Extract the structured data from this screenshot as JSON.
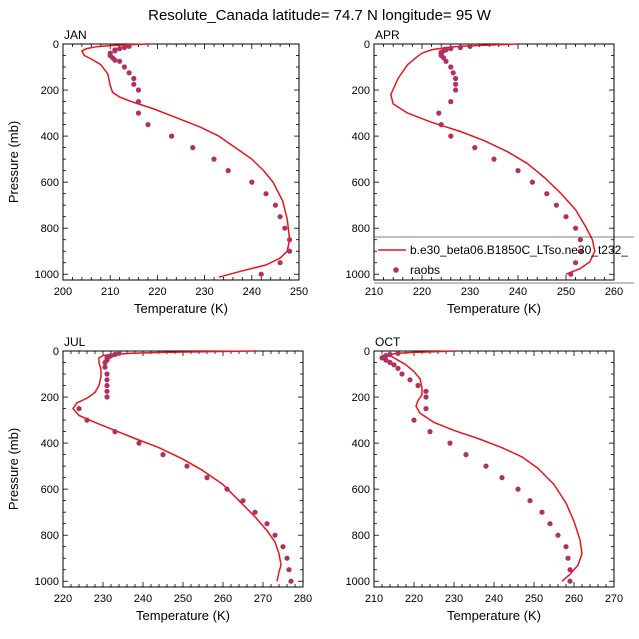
{
  "title": "Resolute_Canada  latitude= 74.7 N longitude= 95 W",
  "colors": {
    "model": "#e8141c",
    "raobs": "#b03060",
    "axis": "#000000"
  },
  "legend": {
    "model_label": "b.e30_beta06.B1850C_LTso.ne30_t232_",
    "obs_label": "raobs",
    "placement": "bottom-right of APR panel"
  },
  "chart_data": [
    {
      "type": "line",
      "panel": "JAN",
      "xlabel": "Temperature (K)",
      "ylabel": "Pressure (mb)",
      "xlim": [
        200,
        250
      ],
      "ylim": [
        1025,
        0
      ],
      "y_inverted": true,
      "xticks": [
        "200",
        "210",
        "220",
        "230",
        "240",
        "250"
      ],
      "yticks": [
        "0",
        "200",
        "400",
        "600",
        "800",
        "1000"
      ],
      "series": [
        {
          "kind": "line",
          "points": [
            [
              218,
              0
            ],
            [
              214,
              3
            ],
            [
              210,
              7
            ],
            [
              207,
              12
            ],
            [
              205,
              20
            ],
            [
              204,
              30
            ],
            [
              204.5,
              50
            ],
            [
              206,
              65
            ],
            [
              208,
              90
            ],
            [
              209.5,
              130
            ],
            [
              210,
              180
            ],
            [
              210.5,
              210
            ],
            [
              212,
              230
            ],
            [
              214.5,
              250
            ],
            [
              219,
              280
            ],
            [
              224,
              320
            ],
            [
              229,
              360
            ],
            [
              233,
              400
            ],
            [
              236.5,
              450
            ],
            [
              240,
              500
            ],
            [
              242.5,
              550
            ],
            [
              244.5,
              600
            ],
            [
              246.5,
              680
            ],
            [
              247.5,
              760
            ],
            [
              248,
              850
            ],
            [
              247.5,
              900
            ],
            [
              246,
              930
            ],
            [
              243,
              960
            ],
            [
              238,
              985
            ],
            [
              233,
              1013
            ]
          ]
        },
        {
          "kind": "points",
          "points": [
            [
              214,
              10
            ],
            [
              213,
              15
            ],
            [
              212,
              20
            ],
            [
              211,
              25
            ],
            [
              211,
              30
            ],
            [
              210,
              40
            ],
            [
              210,
              50
            ],
            [
              210.5,
              60
            ],
            [
              211,
              70
            ],
            [
              212,
              75
            ],
            [
              213,
              100
            ],
            [
              214,
              125
            ],
            [
              215,
              150
            ],
            [
              215,
              175
            ],
            [
              216,
              200
            ],
            [
              216,
              250
            ],
            [
              216,
              300
            ],
            [
              218,
              350
            ],
            [
              223,
              400
            ],
            [
              227.5,
              450
            ],
            [
              232,
              500
            ],
            [
              235,
              550
            ],
            [
              240,
              600
            ],
            [
              243,
              650
            ],
            [
              245,
              700
            ],
            [
              246,
              750
            ],
            [
              247,
              800
            ],
            [
              248,
              850
            ],
            [
              248,
              900
            ],
            [
              246,
              950
            ],
            [
              242,
              1000
            ]
          ]
        }
      ]
    },
    {
      "type": "line",
      "panel": "APR",
      "xlabel": "Temperature (K)",
      "ylabel": "",
      "xlim": [
        210,
        260
      ],
      "ylim": [
        1025,
        0
      ],
      "y_inverted": true,
      "xticks": [
        "210",
        "220",
        "230",
        "240",
        "250",
        "260"
      ],
      "yticks": [
        "0",
        "200",
        "400",
        "600",
        "800",
        "1000"
      ],
      "series": [
        {
          "kind": "line",
          "points": [
            [
              240,
              0
            ],
            [
              233,
              5
            ],
            [
              228,
              10
            ],
            [
              225,
              15
            ],
            [
              222,
              25
            ],
            [
              220,
              40
            ],
            [
              219,
              55
            ],
            [
              217,
              90
            ],
            [
              215,
              150
            ],
            [
              213.5,
              220
            ],
            [
              214,
              260
            ],
            [
              217,
              300
            ],
            [
              222,
              340
            ],
            [
              228,
              380
            ],
            [
              233,
              420
            ],
            [
              238,
              470
            ],
            [
              242,
              520
            ],
            [
              245.5,
              580
            ],
            [
              249,
              650
            ],
            [
              252,
              720
            ],
            [
              254,
              790
            ],
            [
              255.5,
              850
            ],
            [
              256,
              900
            ],
            [
              255,
              945
            ],
            [
              253,
              975
            ],
            [
              250,
              1000
            ]
          ]
        },
        {
          "kind": "points",
          "points": [
            [
              230,
              10
            ],
            [
              228,
              15
            ],
            [
              226,
              20
            ],
            [
              225,
              25
            ],
            [
              224.5,
              30
            ],
            [
              224,
              35
            ],
            [
              224,
              40
            ],
            [
              224,
              45
            ],
            [
              224,
              50
            ],
            [
              224.5,
              60
            ],
            [
              225,
              75
            ],
            [
              226,
              100
            ],
            [
              226.5,
              125
            ],
            [
              227,
              150
            ],
            [
              227,
              175
            ],
            [
              227,
              200
            ],
            [
              226,
              250
            ],
            [
              223.5,
              300
            ],
            [
              224,
              350
            ],
            [
              226,
              400
            ],
            [
              231,
              450
            ],
            [
              235,
              500
            ],
            [
              240,
              550
            ],
            [
              243,
              600
            ],
            [
              246,
              650
            ],
            [
              248,
              700
            ],
            [
              250,
              750
            ],
            [
              252,
              800
            ],
            [
              253,
              850
            ],
            [
              253,
              900
            ],
            [
              252,
              950
            ],
            [
              251,
              1000
            ]
          ]
        }
      ]
    },
    {
      "type": "line",
      "panel": "JUL",
      "xlabel": "Temperature (K)",
      "ylabel": "Pressure (mb)",
      "xlim": [
        220,
        280
      ],
      "ylim": [
        1025,
        0
      ],
      "y_inverted": true,
      "xticks": [
        "220",
        "230",
        "240",
        "250",
        "260",
        "270",
        "280"
      ],
      "yticks": [
        "0",
        "200",
        "400",
        "600",
        "800",
        "1000"
      ],
      "series": [
        {
          "kind": "line",
          "points": [
            [
              268,
              0
            ],
            [
              255,
              3
            ],
            [
              245,
              6
            ],
            [
              237,
              10
            ],
            [
              232,
              15
            ],
            [
              230,
              20
            ],
            [
              229,
              30
            ],
            [
              229,
              50
            ],
            [
              229.5,
              80
            ],
            [
              229.5,
              110
            ],
            [
              229,
              150
            ],
            [
              228,
              180
            ],
            [
              226,
              205
            ],
            [
              223.5,
              225
            ],
            [
              222.5,
              250
            ],
            [
              224,
              280
            ],
            [
              228,
              310
            ],
            [
              233,
              345
            ],
            [
              238,
              380
            ],
            [
              244,
              420
            ],
            [
              250,
              470
            ],
            [
              255,
              520
            ],
            [
              260,
              580
            ],
            [
              264,
              650
            ],
            [
              268,
              720
            ],
            [
              271,
              780
            ],
            [
              273,
              830
            ],
            [
              274,
              880
            ],
            [
              274.5,
              930
            ],
            [
              274,
              960
            ],
            [
              273.5,
              1000
            ]
          ]
        },
        {
          "kind": "points",
          "points": [
            [
              234,
              10
            ],
            [
              233,
              15
            ],
            [
              232,
              20
            ],
            [
              231.5,
              25
            ],
            [
              231,
              30
            ],
            [
              231,
              40
            ],
            [
              230.5,
              50
            ],
            [
              230.5,
              70
            ],
            [
              231,
              100
            ],
            [
              231,
              125
            ],
            [
              231,
              150
            ],
            [
              231,
              175
            ],
            [
              231,
              200
            ],
            [
              224,
              250
            ],
            [
              226,
              300
            ],
            [
              233,
              350
            ],
            [
              239,
              400
            ],
            [
              245,
              450
            ],
            [
              251,
              500
            ],
            [
              256,
              550
            ],
            [
              261,
              600
            ],
            [
              265,
              650
            ],
            [
              268,
              700
            ],
            [
              271,
              750
            ],
            [
              273,
              800
            ],
            [
              275,
              850
            ],
            [
              276,
              900
            ],
            [
              276.5,
              950
            ],
            [
              277,
              1000
            ]
          ]
        }
      ]
    },
    {
      "type": "line",
      "panel": "OCT",
      "xlabel": "Temperature (K)",
      "ylabel": "",
      "xlim": [
        210,
        270
      ],
      "ylim": [
        1025,
        0
      ],
      "y_inverted": true,
      "xticks": [
        "210",
        "220",
        "230",
        "240",
        "250",
        "260",
        "270"
      ],
      "yticks": [
        "0",
        "200",
        "400",
        "600",
        "800",
        "1000"
      ],
      "series": [
        {
          "kind": "line",
          "points": [
            [
              230,
              0
            ],
            [
              225,
              3
            ],
            [
              220,
              6
            ],
            [
              216,
              10
            ],
            [
              214,
              15
            ],
            [
              214,
              20
            ],
            [
              215,
              30
            ],
            [
              216,
              40
            ],
            [
              218,
              60
            ],
            [
              220,
              90
            ],
            [
              221.5,
              120
            ],
            [
              222,
              160
            ],
            [
              222,
              190
            ],
            [
              221,
              215
            ],
            [
              220.5,
              240
            ],
            [
              221.5,
              270
            ],
            [
              225,
              310
            ],
            [
              230,
              345
            ],
            [
              236,
              380
            ],
            [
              242,
              420
            ],
            [
              247,
              460
            ],
            [
              251,
              510
            ],
            [
              255,
              580
            ],
            [
              258,
              660
            ],
            [
              260,
              740
            ],
            [
              261.5,
              820
            ],
            [
              262,
              880
            ],
            [
              261,
              930
            ],
            [
              259,
              970
            ],
            [
              257,
              1000
            ]
          ]
        },
        {
          "kind": "points",
          "points": [
            [
              216,
              10
            ],
            [
              214,
              15
            ],
            [
              213,
              20
            ],
            [
              212.5,
              25
            ],
            [
              212,
              30
            ],
            [
              213,
              40
            ],
            [
              214,
              50
            ],
            [
              215,
              60
            ],
            [
              216,
              75
            ],
            [
              217,
              100
            ],
            [
              219,
              125
            ],
            [
              221,
              150
            ],
            [
              223,
              175
            ],
            [
              223,
              200
            ],
            [
              223,
              250
            ],
            [
              220,
              300
            ],
            [
              224,
              350
            ],
            [
              229,
              400
            ],
            [
              233,
              450
            ],
            [
              238,
              500
            ],
            [
              242,
              550
            ],
            [
              246,
              600
            ],
            [
              249,
              650
            ],
            [
              252,
              700
            ],
            [
              254,
              750
            ],
            [
              256,
              800
            ],
            [
              258,
              850
            ],
            [
              258.5,
              900
            ],
            [
              259,
              950
            ],
            [
              259,
              1000
            ]
          ]
        }
      ]
    }
  ]
}
